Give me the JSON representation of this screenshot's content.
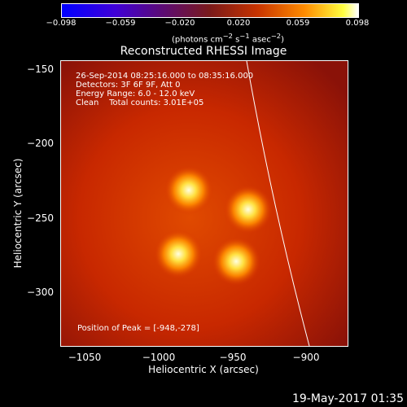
{
  "colorbar": {
    "ticks": [
      "−0.098",
      "−0.059",
      "−0.020",
      "0.020",
      "0.059",
      "0.098"
    ],
    "unit_prefix": "(photons cm",
    "unit_exp1": "−2",
    "unit_mid1": " s",
    "unit_exp2": "−1",
    "unit_mid2": " asec",
    "unit_exp3": "−2",
    "unit_suffix": ")"
  },
  "chart_data": {
    "type": "heatmap",
    "title": "Reconstructed RHESSI Image",
    "xlabel": "Heliocentric X (arcsec)",
    "ylabel": "Heliocentric Y (arcsec)",
    "xlim": [
      -1066,
      -873
    ],
    "ylim": [
      -335,
      -143
    ],
    "xticks": [
      "−1050",
      "−1000",
      "−950",
      "−900"
    ],
    "yticks": [
      "−150",
      "−200",
      "−250",
      "−300"
    ],
    "sources": [
      {
        "x": -980,
        "y": -230
      },
      {
        "x": -940,
        "y": -243
      },
      {
        "x": -987,
        "y": -273
      },
      {
        "x": -948,
        "y": -278
      }
    ],
    "peak": [
      -948,
      -278
    ],
    "limb_arc": true
  },
  "info": {
    "time_range": "26-Sep-2014 08:25:16.000 to 08:35:16.000",
    "detectors": "Detectors: 3F 6F 9F, Att 0",
    "energy": "Energy Range: 6.0 - 12.0 keV",
    "method": "Clean",
    "counts": "Total counts: 3.01E+05",
    "peak_position": "Position of Peak = [-948,-278]"
  },
  "footer": {
    "date": "19-May-2017 01:35"
  }
}
